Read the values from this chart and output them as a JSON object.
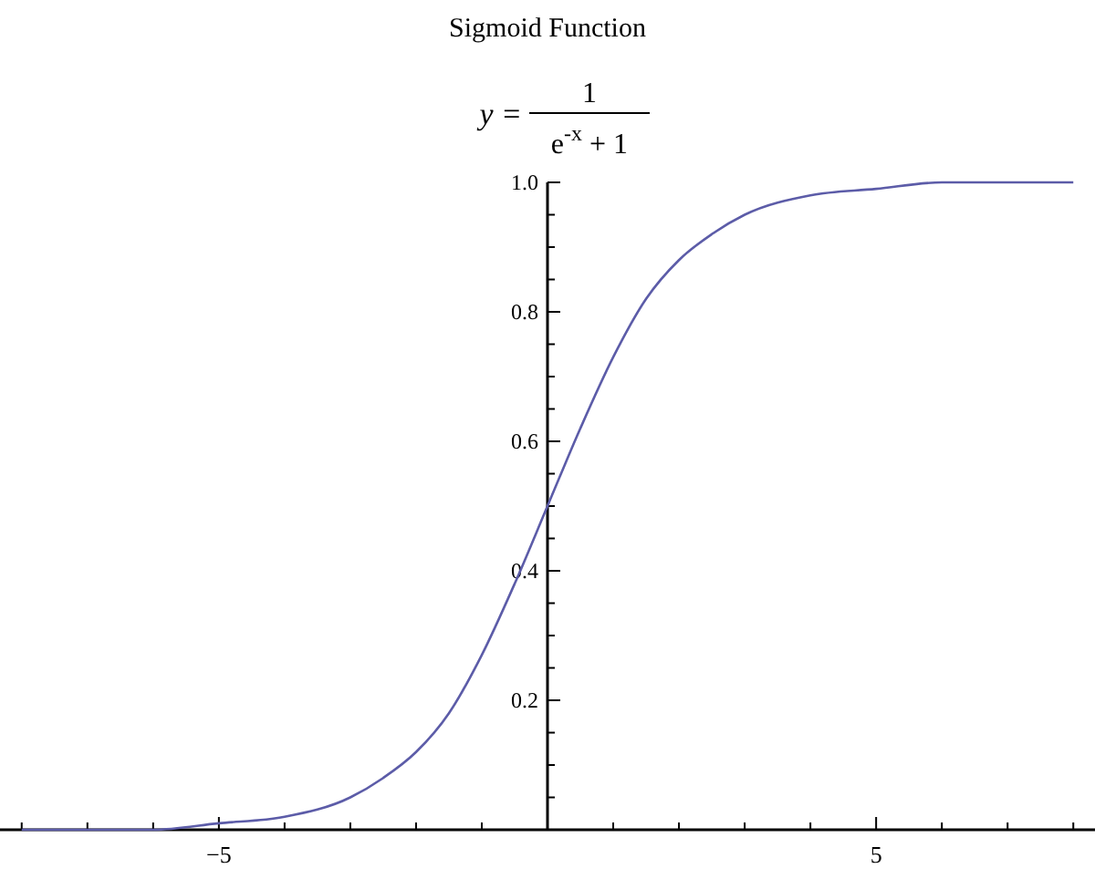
{
  "chart_data": {
    "type": "line",
    "title": "Sigmoid Function",
    "annotations": [
      "y =",
      "1",
      "e$^{-x}$ + 1"
    ],
    "x": [
      -8,
      -7,
      -6,
      -5,
      -4,
      -3,
      -2.5,
      -2,
      -1.5,
      -1,
      -0.5,
      0,
      0.5,
      1,
      1.5,
      2,
      2.5,
      3,
      4,
      5,
      6,
      7,
      8
    ],
    "series": [
      {
        "color": "#5c5ca8",
        "values": [
          0.0,
          0.0,
          0.0,
          0.01,
          0.02,
          0.05,
          0.08,
          0.12,
          0.18,
          0.27,
          0.38,
          0.5,
          0.62,
          0.73,
          0.82,
          0.88,
          0.92,
          0.95,
          0.98,
          0.99,
          1.0,
          1.0,
          1.0
        ]
      }
    ],
    "xlim": [
      -8.33,
      8.33
    ],
    "ylim": [
      0,
      1
    ],
    "xticks": [
      {
        "value": -8,
        "label": null
      },
      {
        "value": -7,
        "label": null
      },
      {
        "value": -6,
        "label": null
      },
      -5,
      {
        "value": -4,
        "label": null
      },
      {
        "value": -3,
        "label": null
      },
      {
        "value": -2,
        "label": null
      },
      {
        "value": -1,
        "label": null
      },
      {
        "value": 1,
        "label": null
      },
      {
        "value": 2,
        "label": null
      },
      {
        "value": 3,
        "label": null
      },
      {
        "value": 4,
        "label": null
      },
      5,
      {
        "value": 6,
        "label": null
      },
      {
        "value": 7,
        "label": null
      },
      {
        "value": 8,
        "label": null
      }
    ],
    "yticks": [
      {
        "value": 0.05,
        "label": null
      },
      {
        "value": 0.1,
        "label": null
      },
      {
        "value": 0.15,
        "label": null
      },
      0.2,
      {
        "value": 0.25,
        "label": null
      },
      {
        "value": 0.3,
        "label": null
      },
      {
        "value": 0.35,
        "label": null
      },
      0.4,
      {
        "value": 0.45,
        "label": null
      },
      {
        "value": 0.5,
        "label": null
      },
      {
        "value": 0.55,
        "label": null
      },
      0.6,
      {
        "value": 0.65,
        "label": null
      },
      {
        "value": 0.7,
        "label": null
      },
      {
        "value": 0.75,
        "label": null
      },
      0.8,
      {
        "value": 0.85,
        "label": null
      },
      {
        "value": 0.9,
        "label": null
      },
      {
        "value": 0.95,
        "label": null
      },
      {
        "value": 1,
        "label": "1.0"
      }
    ],
    "marker": "none",
    "line_style": "solid"
  }
}
